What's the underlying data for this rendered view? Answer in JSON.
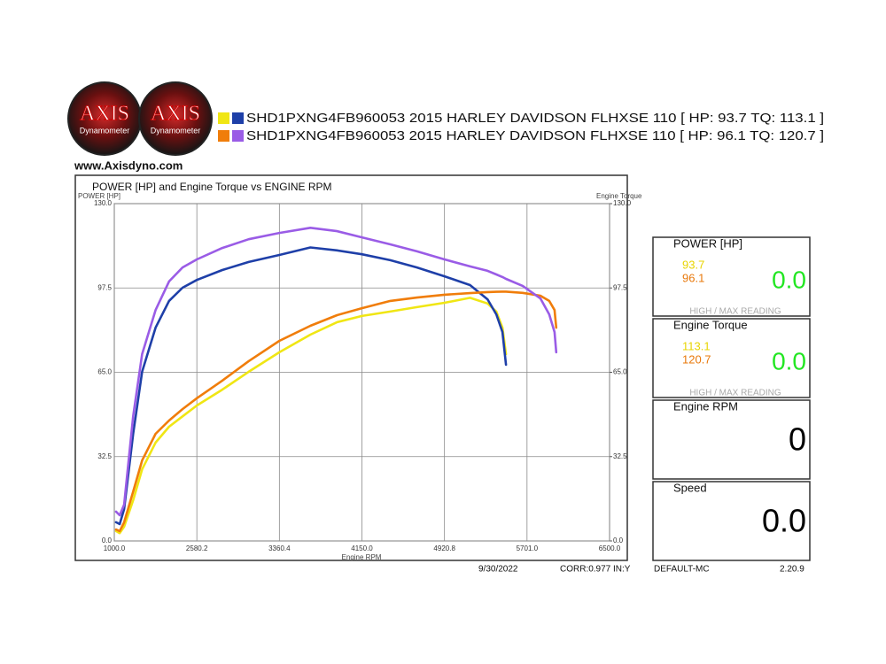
{
  "header": {
    "logos": [
      {
        "brand": "AXIS",
        "sub": "Dynamometer"
      },
      {
        "brand": "AXIS",
        "sub": "Dynamometer"
      }
    ],
    "website": "www.Axisdyno.com"
  },
  "chart_data": {
    "type": "line",
    "title": "POWER [HP] and Engine Torque vs ENGINE RPM",
    "y_label": "POWER [HP]",
    "y2_label": "Engine Torque",
    "x_label": "Engine RPM",
    "legend": [
      "SHD1PXNG4FB960053 2015 HARLEY DAVIDSON FLHXSE 110 [ HP: 93.7 TQ: 113.1 ]",
      "SHD1PXNG4FB960053 2015 HARLEY DAVIDSON FLHXSE 110 [ HP: 96.1 TQ: 120.7 ]"
    ],
    "x": [
      1034,
      1103,
      1189,
      1361,
      1532,
      1790,
      2048,
      2306,
      2580.2,
      2821,
      3070,
      3360.4,
      3657,
      3912,
      4150,
      4415,
      4664,
      4920.8,
      5162,
      5328,
      5411,
      5469,
      5502,
      5660,
      5830,
      5916,
      5967,
      5984
    ],
    "series": [
      {
        "color": "#f0e614",
        "values": [
          3.8,
          3.0,
          5.5,
          15.7,
          27.6,
          37.9,
          44.0,
          48.0,
          52.2,
          58.3,
          65.2,
          72.7,
          79.5,
          84.3,
          86.7,
          88.4,
          90.1,
          91.8,
          93.7,
          91.5,
          88.4,
          82.2,
          72.0,
          null,
          null,
          null,
          null,
          null
        ]
      },
      {
        "color": "#1e3fa8",
        "axis": "y2",
        "values": [
          7.2,
          6.5,
          12.3,
          41.3,
          65.2,
          82.2,
          92.5,
          97.6,
          100.6,
          104.4,
          107.5,
          110.2,
          113.1,
          112.0,
          110.5,
          108.2,
          105.4,
          102.0,
          98.6,
          93.1,
          87.3,
          80.5,
          67.9,
          null,
          null,
          null,
          null,
          null
        ]
      },
      {
        "color": "#f07d0a",
        "values": [
          4.4,
          3.8,
          7.2,
          19.0,
          31.0,
          41.3,
          46.4,
          50.8,
          55.0,
          61.8,
          69.3,
          77.1,
          82.9,
          87.0,
          89.7,
          92.5,
          93.8,
          94.9,
          95.5,
          95.9,
          96.0,
          96.1,
          96.1,
          95.6,
          94.5,
          92.5,
          89.0,
          82.2
        ]
      },
      {
        "color": "#9a5ce6",
        "axis": "y2",
        "values": [
          11.3,
          9.9,
          14.0,
          48.1,
          72.0,
          89.0,
          100.0,
          105.4,
          108.5,
          112.9,
          116.3,
          118.7,
          120.7,
          119.4,
          117.0,
          114.3,
          111.6,
          108.5,
          105.8,
          104.1,
          102.7,
          101.7,
          101.0,
          98.3,
          93.5,
          87.3,
          80.5,
          72.7
        ]
      }
    ],
    "xlim": [
      1000,
      6500
    ],
    "xticks": [
      {
        "value": 1000,
        "label": "1000.0"
      },
      2580.2,
      3360.4,
      {
        "value": 4150,
        "label": "4150.0"
      },
      4920.8,
      {
        "value": 5701,
        "label": "5701.0"
      },
      {
        "value": 6500,
        "label": "6500.0"
      }
    ],
    "ylim": [
      0,
      130
    ],
    "yticks": [
      {
        "value": 0,
        "label": "0.0"
      },
      32.5,
      {
        "value": 65,
        "label": "65.0"
      },
      97.5,
      {
        "value": 130,
        "label": "130.0"
      }
    ],
    "y2lim": [
      0,
      130
    ],
    "y2ticks": [
      {
        "value": 0,
        "label": "0.0"
      },
      32.5,
      {
        "value": 65,
        "label": "65.0"
      },
      97.5,
      {
        "value": 130,
        "label": "130.0"
      }
    ],
    "grid": true
  },
  "panels": [
    {
      "title": "POWER [HP]",
      "readings": [
        "93.7",
        "96.1"
      ],
      "reading": "0.0",
      "note": "HIGH / MAX READING"
    },
    {
      "title": "Engine Torque",
      "readings": [
        "113.1",
        "120.7"
      ],
      "reading": "0.0",
      "note": "HIGH / MAX READING"
    },
    {
      "title": "Engine RPM",
      "reading": "0"
    },
    {
      "title": "Speed",
      "reading": "0.0"
    }
  ],
  "footer": {
    "date": "9/30/2022",
    "correction": "CORR:0.977 IN:Y",
    "profile": "DEFAULT-MC",
    "version": "2.20.9"
  }
}
